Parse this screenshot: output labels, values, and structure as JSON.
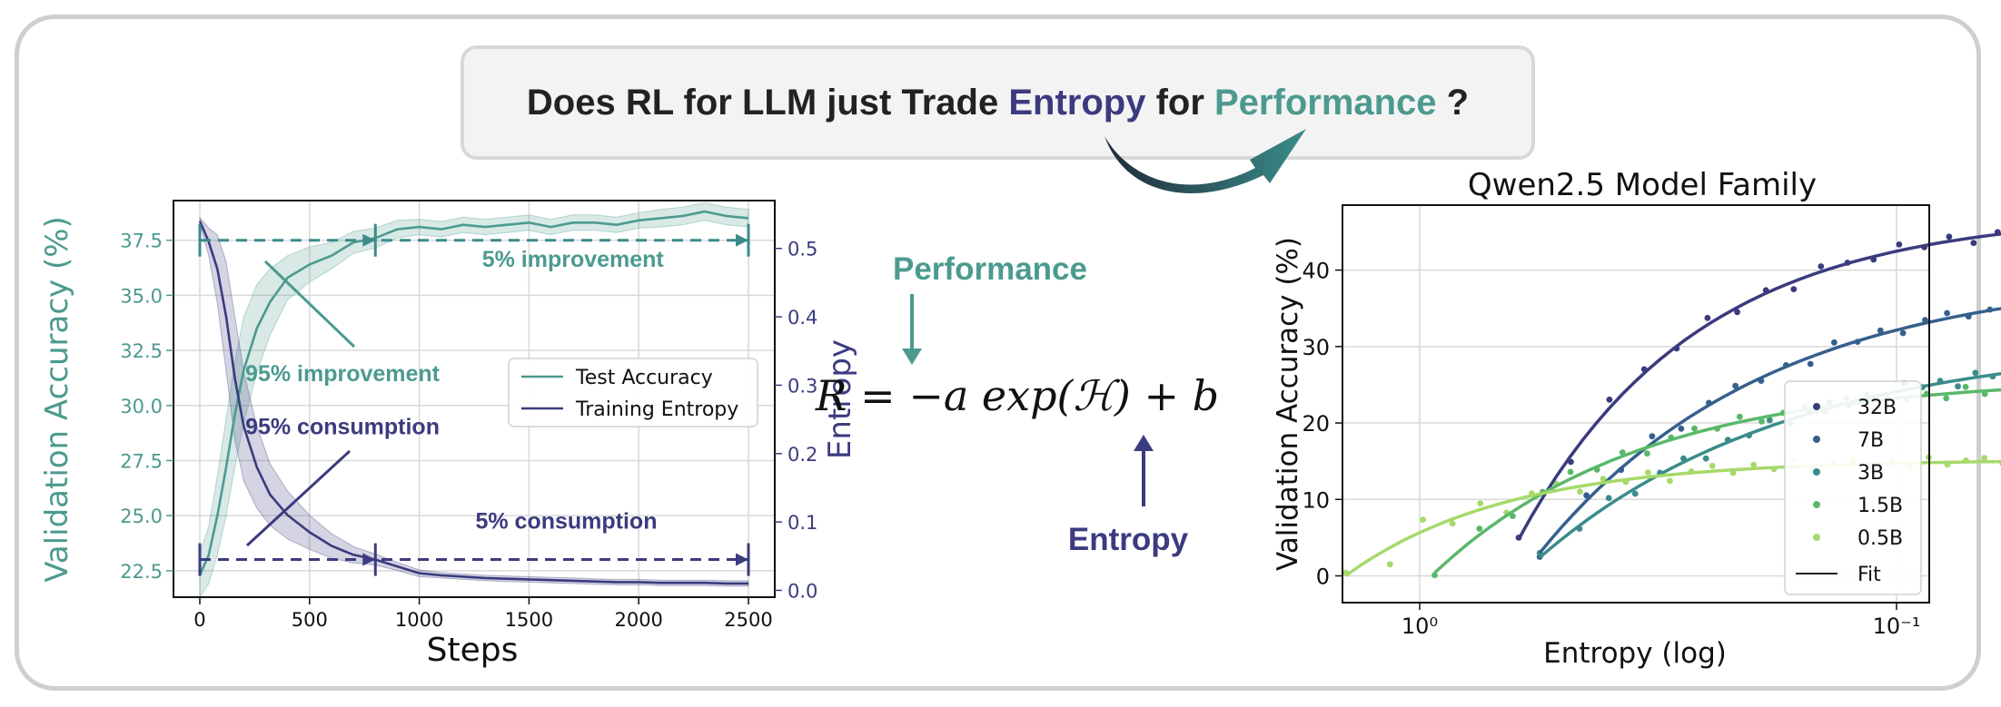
{
  "headline": {
    "prefix": "Does RL for LLM just Trade ",
    "entropy_word": "Entropy",
    "middle": " for ",
    "performance_word": "Performance",
    "suffix": " ?"
  },
  "colors": {
    "entropy": "#3b3b7f",
    "performance": "#4c9a8f",
    "accent_light": "#a6d96a"
  },
  "formula": {
    "text": "R = −a exp(ℋ) + b",
    "performance_label": "Performance",
    "entropy_label": "Entropy"
  },
  "chart_data": [
    {
      "type": "line",
      "title": "",
      "xlabel": "Steps",
      "ylabel": "Validation Accuracy (%)",
      "y2label": "Entropy",
      "xlim": [
        -120,
        2620
      ],
      "ylim": [
        21.3,
        39.3
      ],
      "y2lim": [
        -0.01,
        0.57
      ],
      "x_ticks": [
        "0",
        "500",
        "1000",
        "1500",
        "2000",
        "2500"
      ],
      "y_ticks": [
        "22.5",
        "25.0",
        "27.5",
        "30.0",
        "32.5",
        "35.0",
        "37.5"
      ],
      "y2_ticks": [
        "0.0",
        "0.1",
        "0.2",
        "0.3",
        "0.4",
        "0.5"
      ],
      "grid": true,
      "legend_position": "center-right",
      "series": [
        {
          "name": "Test Accuracy",
          "axis": "left",
          "x": [
            0,
            40,
            80,
            120,
            160,
            200,
            260,
            320,
            400,
            500,
            600,
            700,
            800,
            900,
            1000,
            1100,
            1200,
            1300,
            1400,
            1500,
            1600,
            1700,
            1800,
            1900,
            2000,
            2100,
            2200,
            2300,
            2400,
            2500
          ],
          "y": [
            22.3,
            23.2,
            25.0,
            27.2,
            29.6,
            31.6,
            33.5,
            34.7,
            35.8,
            36.4,
            36.8,
            37.4,
            37.6,
            38.0,
            38.1,
            38.0,
            38.2,
            38.1,
            38.2,
            38.3,
            38.1,
            38.3,
            38.3,
            38.2,
            38.4,
            38.5,
            38.6,
            38.8,
            38.6,
            38.5
          ],
          "band": [
            1.0,
            1.3,
            1.8,
            2.2,
            2.4,
            2.4,
            2.0,
            1.5,
            1.0,
            0.8,
            0.6,
            0.5,
            0.45,
            0.4,
            0.35,
            0.35,
            0.35,
            0.35,
            0.35,
            0.35,
            0.35,
            0.35,
            0.35,
            0.35,
            0.35,
            0.4,
            0.4,
            0.4,
            0.4,
            0.4
          ]
        },
        {
          "name": "Training Entropy",
          "axis": "right",
          "x": [
            0,
            40,
            80,
            120,
            160,
            200,
            260,
            320,
            400,
            500,
            600,
            700,
            800,
            900,
            1000,
            1100,
            1200,
            1300,
            1400,
            1500,
            1600,
            1700,
            1800,
            1900,
            2000,
            2100,
            2200,
            2300,
            2400,
            2500
          ],
          "y": [
            0.54,
            0.51,
            0.47,
            0.4,
            0.31,
            0.24,
            0.18,
            0.14,
            0.11,
            0.085,
            0.065,
            0.052,
            0.045,
            0.035,
            0.025,
            0.022,
            0.02,
            0.018,
            0.017,
            0.016,
            0.015,
            0.014,
            0.013,
            0.012,
            0.012,
            0.011,
            0.011,
            0.011,
            0.01,
            0.01
          ],
          "band": [
            0.005,
            0.02,
            0.05,
            0.08,
            0.09,
            0.08,
            0.06,
            0.045,
            0.035,
            0.025,
            0.018,
            0.012,
            0.008,
            0.006,
            0.005,
            0.004,
            0.004,
            0.004,
            0.004,
            0.004,
            0.004,
            0.004,
            0.004,
            0.004,
            0.004,
            0.004,
            0.004,
            0.004,
            0.004,
            0.004
          ]
        }
      ],
      "annotations": [
        {
          "text": "5% improvement",
          "x": 1700,
          "y": 36.3
        },
        {
          "text": "95% improvement",
          "x": 650,
          "y": 31.1
        },
        {
          "text": "95% consumption",
          "x": 650,
          "y": 28.7
        },
        {
          "text": "5% consumption",
          "x": 1670,
          "y": 24.4
        }
      ]
    },
    {
      "type": "scatter",
      "title": "Qwen2.5 Model Family",
      "xlabel": "Entropy (log)",
      "ylabel": "Validation Accuracy (%)",
      "x_scale": "log-reversed",
      "x_ticks": [
        "10⁰",
        "10⁻¹"
      ],
      "y_ticks": [
        "0",
        "10",
        "20",
        "30",
        "40"
      ],
      "ylim": [
        -3.5,
        48.5
      ],
      "grid": true,
      "legend_position": "lower-right",
      "series": [
        {
          "name": "32B",
          "color": "#3b3b7f",
          "entropy_range": [
            0.62,
            0.015
          ],
          "fit": [
            47.5,
            4.8,
            2.7
          ],
          "noise": [
            0.2,
            -0.8,
            1.1,
            0.5,
            -0.3,
            0.9,
            -0.6,
            0.4,
            -1.0,
            0.7,
            0.1,
            -0.4,
            0.8,
            -0.2,
            0.6,
            -0.7,
            0.3,
            -0.5,
            0.9,
            -0.1,
            0.5,
            -0.8,
            0.2,
            0.7,
            -0.3,
            0.4,
            -0.6,
            0.8,
            -0.2,
            0.3
          ]
        },
        {
          "name": "7B",
          "color": "#35608d",
          "entropy_range": [
            0.56,
            0.02
          ],
          "fit": [
            39.8,
            3.0,
            2.1
          ],
          "noise": [
            -0.5,
            0.7,
            -0.2,
            0.9,
            -0.8,
            0.3,
            0.6,
            -0.4,
            0.2,
            -0.9,
            0.8,
            -0.1,
            0.5,
            -0.6,
            0.4,
            0.7,
            -0.3,
            0.1,
            -0.7,
            0.6,
            -0.2,
            0.9,
            -0.5,
            0.3,
            -0.1,
            0.6,
            -0.4,
            0.2,
            0.5,
            -0.3
          ]
        },
        {
          "name": "3B",
          "color": "#3a8c8a",
          "entropy_range": [
            0.56,
            0.033
          ],
          "fit": [
            31.0,
            2.4,
            1.9
          ],
          "noise": [
            0.6,
            -0.4,
            0.9,
            -0.7,
            0.2,
            0.5,
            -0.9,
            0.3,
            -0.2,
            0.8,
            -0.5,
            0.1,
            0.7,
            -0.3,
            0.4,
            -0.6,
            0.9,
            -0.1,
            0.3,
            -0.8,
            0.6,
            -0.2,
            0.5,
            -0.4,
            0.2,
            0.7,
            -0.5,
            0.1,
            0.4,
            -0.2
          ]
        },
        {
          "name": "1.5B",
          "color": "#5ab86a",
          "entropy_range": [
            0.93,
            0.038
          ],
          "fit": [
            26.0,
            0.4,
            2.3
          ],
          "noise": [
            -0.3,
            0.8,
            -0.6,
            0.2,
            0.9,
            -0.4,
            0.5,
            -0.8,
            0.3,
            0.6,
            -0.2,
            0.7,
            -0.5,
            0.1,
            0.4,
            -0.7,
            0.8,
            -0.1,
            0.5,
            -0.3,
            0.2,
            -0.6,
            0.7,
            -0.4,
            0.3,
            0.6,
            -0.2,
            0.1,
            -0.5,
            0.4
          ]
        },
        {
          "name": "0.5B",
          "color": "#a6d96a",
          "entropy_range": [
            1.43,
            0.06
          ],
          "fit": [
            15.2,
            0.0,
            3.0
          ],
          "noise": [
            0.4,
            -2.2,
            1.5,
            -0.6,
            0.8,
            -1.4,
            0.3,
            0.9,
            -0.7,
            0.5,
            -0.3,
            0.6,
            -0.8,
            0.2,
            0.7,
            -0.4,
            0.5,
            -0.2,
            0.8,
            -0.5,
            0.3,
            0.6,
            -0.1,
            0.4,
            -0.6,
            0.7,
            -0.3,
            0.2,
            0.5,
            -0.2
          ]
        }
      ],
      "legend_fit_label": "Fit"
    }
  ]
}
